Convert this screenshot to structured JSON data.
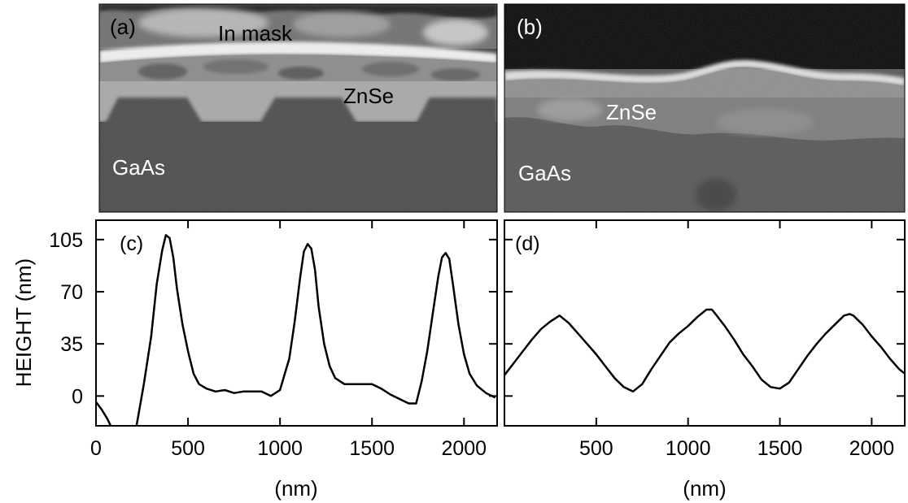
{
  "micrographs": [
    {
      "panel_label": "(a)",
      "labels": {
        "mask": "In mask",
        "layer": "ZnSe",
        "substrate": "GaAs"
      }
    },
    {
      "panel_label": "(b)",
      "labels": {
        "layer": "ZnSe",
        "substrate": "GaAs"
      }
    }
  ],
  "chart_data": [
    {
      "type": "line",
      "panel_label": "(c)",
      "xlabel": "(nm)",
      "ylabel": "HEIGHT (nm)",
      "xlim": [
        0,
        2180
      ],
      "ylim": [
        -20,
        118
      ],
      "xticks": [
        0,
        500,
        1000,
        1500,
        2000
      ],
      "yticks": [
        0,
        35,
        70,
        105
      ],
      "series": [
        {
          "x": [
            0,
            30,
            60,
            80,
            120,
            180,
            220,
            260,
            300,
            330,
            360,
            380,
            400,
            420,
            440,
            470,
            500,
            530,
            560,
            600,
            650,
            700,
            750,
            800,
            850,
            900,
            950,
            1000,
            1050,
            1080,
            1110,
            1130,
            1150,
            1170,
            1190,
            1210,
            1240,
            1270,
            1300,
            1350,
            1400,
            1450,
            1500,
            1550,
            1600,
            1650,
            1700,
            1740,
            1770,
            1800,
            1830,
            1860,
            1880,
            1900,
            1920,
            1940,
            1970,
            2000,
            2030,
            2070,
            2120,
            2170
          ],
          "y": [
            -4,
            -9,
            -15,
            -20,
            -45,
            -45,
            -20,
            8,
            40,
            75,
            98,
            108,
            106,
            93,
            72,
            48,
            30,
            15,
            8,
            5,
            3,
            4,
            2,
            3,
            3,
            3,
            0,
            4,
            25,
            50,
            80,
            97,
            102,
            99,
            85,
            60,
            35,
            20,
            12,
            8,
            8,
            8,
            8,
            5,
            1,
            -2,
            -5,
            -5,
            10,
            30,
            55,
            80,
            93,
            96,
            92,
            75,
            48,
            28,
            15,
            7,
            2,
            -1
          ]
        }
      ]
    },
    {
      "type": "line",
      "panel_label": "(d)",
      "xlabel": "(nm)",
      "ylabel": "",
      "xlim": [
        0,
        2180
      ],
      "ylim": [
        -20,
        118
      ],
      "xticks": [
        500,
        1000,
        1500,
        2000
      ],
      "yticks": [
        0,
        35,
        70,
        105
      ],
      "series": [
        {
          "x": [
            0,
            50,
            100,
            150,
            200,
            250,
            300,
            350,
            400,
            450,
            500,
            550,
            600,
            650,
            700,
            750,
            800,
            850,
            900,
            950,
            1000,
            1050,
            1100,
            1130,
            1150,
            1200,
            1250,
            1300,
            1350,
            1400,
            1450,
            1500,
            1550,
            1600,
            1650,
            1700,
            1750,
            1800,
            1850,
            1880,
            1900,
            1950,
            2000,
            2050,
            2100,
            2150,
            2180
          ],
          "y": [
            14,
            22,
            30,
            38,
            45,
            50,
            54,
            49,
            42,
            35,
            28,
            20,
            12,
            6,
            3,
            8,
            18,
            27,
            36,
            42,
            47,
            53,
            58,
            58,
            55,
            47,
            38,
            28,
            20,
            11,
            6,
            5,
            9,
            18,
            27,
            35,
            42,
            48,
            54,
            55,
            54,
            48,
            40,
            33,
            25,
            18,
            15
          ]
        }
      ]
    }
  ]
}
